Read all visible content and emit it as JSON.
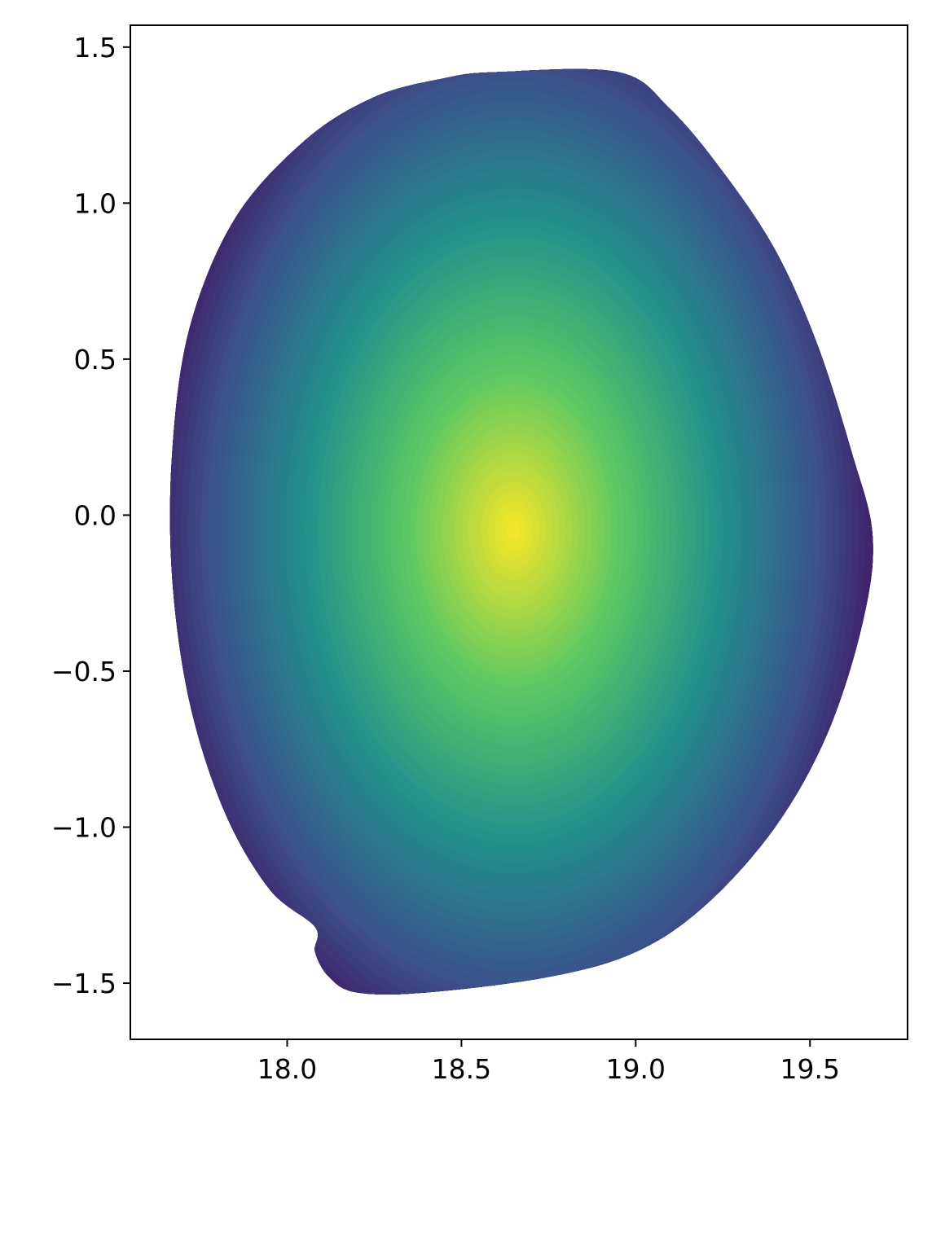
{
  "chart_data": {
    "type": "heatmap",
    "title": "",
    "xlabel": "",
    "ylabel": "",
    "xlim": [
      17.55,
      19.78
    ],
    "ylim": [
      -1.68,
      1.57
    ],
    "grid": false,
    "legend": "none",
    "colormap": "viridis",
    "colormap_stops": [
      "#440154",
      "#3b528b",
      "#21918c",
      "#5ec962",
      "#fde725"
    ],
    "x_ticks": [
      {
        "value": 18.0,
        "label": "18.0"
      },
      {
        "value": 18.5,
        "label": "18.5"
      },
      {
        "value": 19.0,
        "label": "19.0"
      },
      {
        "value": 19.5,
        "label": "19.5"
      }
    ],
    "y_ticks": [
      {
        "value": 1.5,
        "label": "1.5"
      },
      {
        "value": 1.0,
        "label": "1.0"
      },
      {
        "value": 0.5,
        "label": "0.5"
      },
      {
        "value": 0.0,
        "label": "0.0"
      },
      {
        "value": -0.5,
        "label": "−0.5"
      },
      {
        "value": -1.0,
        "label": "−1.0"
      },
      {
        "value": -1.5,
        "label": "−1.5"
      }
    ],
    "peak": {
      "x": 18.65,
      "y": -0.05
    },
    "boundary": [
      [
        18.45,
        1.4
      ],
      [
        18.6,
        1.42
      ],
      [
        18.95,
        1.42
      ],
      [
        19.1,
        1.3
      ],
      [
        19.25,
        1.1
      ],
      [
        19.4,
        0.85
      ],
      [
        19.52,
        0.55
      ],
      [
        19.62,
        0.2
      ],
      [
        19.68,
        -0.07
      ],
      [
        19.65,
        -0.35
      ],
      [
        19.55,
        -0.7
      ],
      [
        19.4,
        -1.0
      ],
      [
        19.2,
        -1.25
      ],
      [
        19.0,
        -1.4
      ],
      [
        18.75,
        -1.48
      ],
      [
        18.4,
        -1.53
      ],
      [
        18.2,
        -1.53
      ],
      [
        18.12,
        -1.48
      ],
      [
        18.08,
        -1.4
      ],
      [
        18.08,
        -1.32
      ],
      [
        17.95,
        -1.2
      ],
      [
        17.82,
        -0.95
      ],
      [
        17.72,
        -0.6
      ],
      [
        17.67,
        -0.2
      ],
      [
        17.67,
        0.2
      ],
      [
        17.72,
        0.6
      ],
      [
        17.85,
        0.95
      ],
      [
        18.05,
        1.2
      ],
      [
        18.25,
        1.34
      ]
    ]
  }
}
